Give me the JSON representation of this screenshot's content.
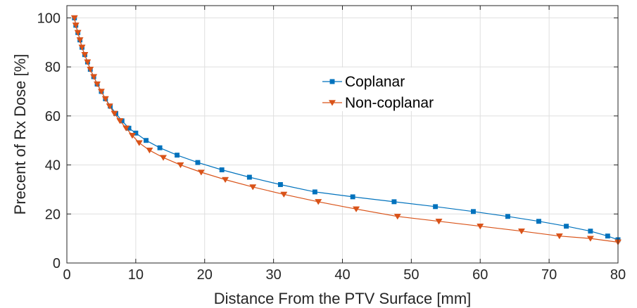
{
  "chart_data": {
    "type": "line",
    "title": "",
    "xlabel": "Distance From the PTV Surface [mm]",
    "ylabel": "Precent of Rx Dose [%]",
    "xlim": [
      0,
      80
    ],
    "ylim": [
      0,
      105
    ],
    "x_ticks": [
      0,
      10,
      20,
      30,
      40,
      50,
      60,
      70,
      80
    ],
    "y_ticks": [
      0,
      20,
      40,
      60,
      80,
      100
    ],
    "grid": true,
    "legend_position": "center",
    "series": [
      {
        "name": "Coplanar",
        "color": "#0072BD",
        "marker": "square",
        "points": [
          [
            1.1,
            100
          ],
          [
            1.3,
            97
          ],
          [
            1.6,
            94
          ],
          [
            1.9,
            91
          ],
          [
            2.2,
            88
          ],
          [
            2.6,
            85
          ],
          [
            3.0,
            82
          ],
          [
            3.4,
            79
          ],
          [
            3.9,
            76
          ],
          [
            4.4,
            73
          ],
          [
            5.0,
            70
          ],
          [
            5.6,
            67
          ],
          [
            6.3,
            64
          ],
          [
            7.1,
            61
          ],
          [
            8.0,
            58
          ],
          [
            9.0,
            55
          ],
          [
            10.0,
            53
          ],
          [
            11.5,
            50
          ],
          [
            13.5,
            47
          ],
          [
            16.0,
            44
          ],
          [
            19.0,
            41
          ],
          [
            22.5,
            38
          ],
          [
            26.5,
            35
          ],
          [
            31.0,
            32
          ],
          [
            36.0,
            29
          ],
          [
            41.5,
            27
          ],
          [
            47.5,
            25
          ],
          [
            53.5,
            23
          ],
          [
            59.0,
            21
          ],
          [
            64.0,
            19
          ],
          [
            68.5,
            17
          ],
          [
            72.5,
            15
          ],
          [
            76.0,
            13
          ],
          [
            78.5,
            11
          ],
          [
            80.0,
            9.5
          ]
        ]
      },
      {
        "name": "Non-coplanar",
        "color": "#D95319",
        "marker": "triangle-down",
        "points": [
          [
            1.1,
            100
          ],
          [
            1.3,
            97
          ],
          [
            1.6,
            94
          ],
          [
            1.9,
            91
          ],
          [
            2.2,
            88
          ],
          [
            2.6,
            85
          ],
          [
            3.0,
            82
          ],
          [
            3.4,
            79
          ],
          [
            3.9,
            76
          ],
          [
            4.4,
            73
          ],
          [
            5.0,
            70
          ],
          [
            5.6,
            67
          ],
          [
            6.2,
            64
          ],
          [
            6.9,
            61
          ],
          [
            7.7,
            58
          ],
          [
            8.6,
            55
          ],
          [
            9.5,
            52
          ],
          [
            10.5,
            49
          ],
          [
            12.0,
            46
          ],
          [
            14.0,
            43
          ],
          [
            16.5,
            40
          ],
          [
            19.5,
            37
          ],
          [
            23.0,
            34
          ],
          [
            27.0,
            31
          ],
          [
            31.5,
            28
          ],
          [
            36.5,
            25
          ],
          [
            42.0,
            22
          ],
          [
            48.0,
            19
          ],
          [
            54.0,
            17
          ],
          [
            60.0,
            15
          ],
          [
            66.0,
            13
          ],
          [
            71.5,
            11
          ],
          [
            76.0,
            10
          ],
          [
            80.0,
            8.5
          ]
        ]
      }
    ]
  }
}
